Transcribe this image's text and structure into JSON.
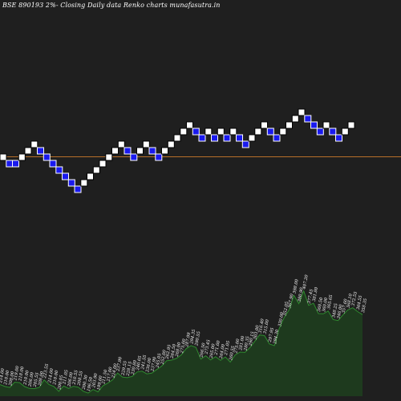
{
  "chart_data": {
    "type": "renko",
    "title": "BSE 890193 2%-  Closing Daily data  Renko  charts munafasutra.in",
    "colors": {
      "background": "#1f1f1f",
      "up_brick": "#ffffff",
      "down_brick": "#1a1aee",
      "reference_line": "#b8702a",
      "volume_fill": "#1e3a1e",
      "volume_line": "#2f8a2f",
      "label_text": "#ffffff"
    },
    "bricks": [
      {
        "level": 0,
        "dir": "up"
      },
      {
        "level": -1,
        "dir": "down"
      },
      {
        "level": -1,
        "dir": "down"
      },
      {
        "level": 0,
        "dir": "up"
      },
      {
        "level": 1,
        "dir": "up"
      },
      {
        "level": 2,
        "dir": "up"
      },
      {
        "level": 1,
        "dir": "down"
      },
      {
        "level": 0,
        "dir": "down"
      },
      {
        "level": -1,
        "dir": "down"
      },
      {
        "level": -2,
        "dir": "down"
      },
      {
        "level": -3,
        "dir": "down"
      },
      {
        "level": -4,
        "dir": "down"
      },
      {
        "level": -5,
        "dir": "down"
      },
      {
        "level": -4,
        "dir": "up"
      },
      {
        "level": -3,
        "dir": "up"
      },
      {
        "level": -2,
        "dir": "up"
      },
      {
        "level": -1,
        "dir": "up"
      },
      {
        "level": 0,
        "dir": "up"
      },
      {
        "level": 1,
        "dir": "up"
      },
      {
        "level": 2,
        "dir": "up"
      },
      {
        "level": 1,
        "dir": "down"
      },
      {
        "level": 0,
        "dir": "down"
      },
      {
        "level": 1,
        "dir": "up"
      },
      {
        "level": 2,
        "dir": "up"
      },
      {
        "level": 1,
        "dir": "down"
      },
      {
        "level": 0,
        "dir": "down"
      },
      {
        "level": 1,
        "dir": "up"
      },
      {
        "level": 2,
        "dir": "up"
      },
      {
        "level": 3,
        "dir": "up"
      },
      {
        "level": 4,
        "dir": "up"
      },
      {
        "level": 5,
        "dir": "up"
      },
      {
        "level": 4,
        "dir": "down"
      },
      {
        "level": 3,
        "dir": "down"
      },
      {
        "level": 4,
        "dir": "up"
      },
      {
        "level": 3,
        "dir": "down"
      },
      {
        "level": 4,
        "dir": "up"
      },
      {
        "level": 3,
        "dir": "down"
      },
      {
        "level": 4,
        "dir": "up"
      },
      {
        "level": 3,
        "dir": "down"
      },
      {
        "level": 2,
        "dir": "down"
      },
      {
        "level": 3,
        "dir": "up"
      },
      {
        "level": 4,
        "dir": "up"
      },
      {
        "level": 5,
        "dir": "up"
      },
      {
        "level": 4,
        "dir": "down"
      },
      {
        "level": 3,
        "dir": "down"
      },
      {
        "level": 4,
        "dir": "up"
      },
      {
        "level": 5,
        "dir": "up"
      },
      {
        "level": 6,
        "dir": "up"
      },
      {
        "level": 7,
        "dir": "up"
      },
      {
        "level": 6,
        "dir": "down"
      },
      {
        "level": 5,
        "dir": "down"
      },
      {
        "level": 4,
        "dir": "down"
      },
      {
        "level": 5,
        "dir": "up"
      },
      {
        "level": 4,
        "dir": "down"
      },
      {
        "level": 3,
        "dir": "down"
      },
      {
        "level": 4,
        "dir": "up"
      },
      {
        "level": 5,
        "dir": "up"
      }
    ],
    "reference_level": 0,
    "volume_labels": [
      "214.00",
      "210.00",
      "208.00",
      "219.00",
      "218.00",
      "210.00",
      "206.00",
      "205.55",
      "208.00",
      "223.55",
      "214.00",
      "210.00",
      "200.05",
      "211.05",
      "206.00",
      "210.55",
      "208.55",
      "200.30",
      "196.50",
      "203.90",
      "199.00",
      "211.50",
      "217.00",
      "224.00",
      "237.90",
      "229.55",
      "228.15",
      "230.80",
      "240.05",
      "241.55",
      "236.00",
      "237.90",
      "245.05",
      "252.00",
      "262.95",
      "264.50",
      "268.00",
      "275.00",
      "287.99",
      "294.35",
      "290.55",
      "266.50",
      "273.45",
      "265.00",
      "271.60",
      "264.00",
      "271.05",
      "260.55",
      "275.00",
      "281.00",
      "280.35",
      "290.15",
      "303.00",
      "316.40",
      "315.00",
      "297.95",
      "294.30",
      "330.00",
      "352.05",
      "367.90",
      "398.00",
      "380.90",
      "407.20",
      "377.45",
      "381.80",
      "360.50",
      "360.00",
      "365.65",
      "348.25",
      "346.00",
      "357.60",
      "368.10",
      "372.55",
      "364.55",
      "358.35"
    ]
  }
}
